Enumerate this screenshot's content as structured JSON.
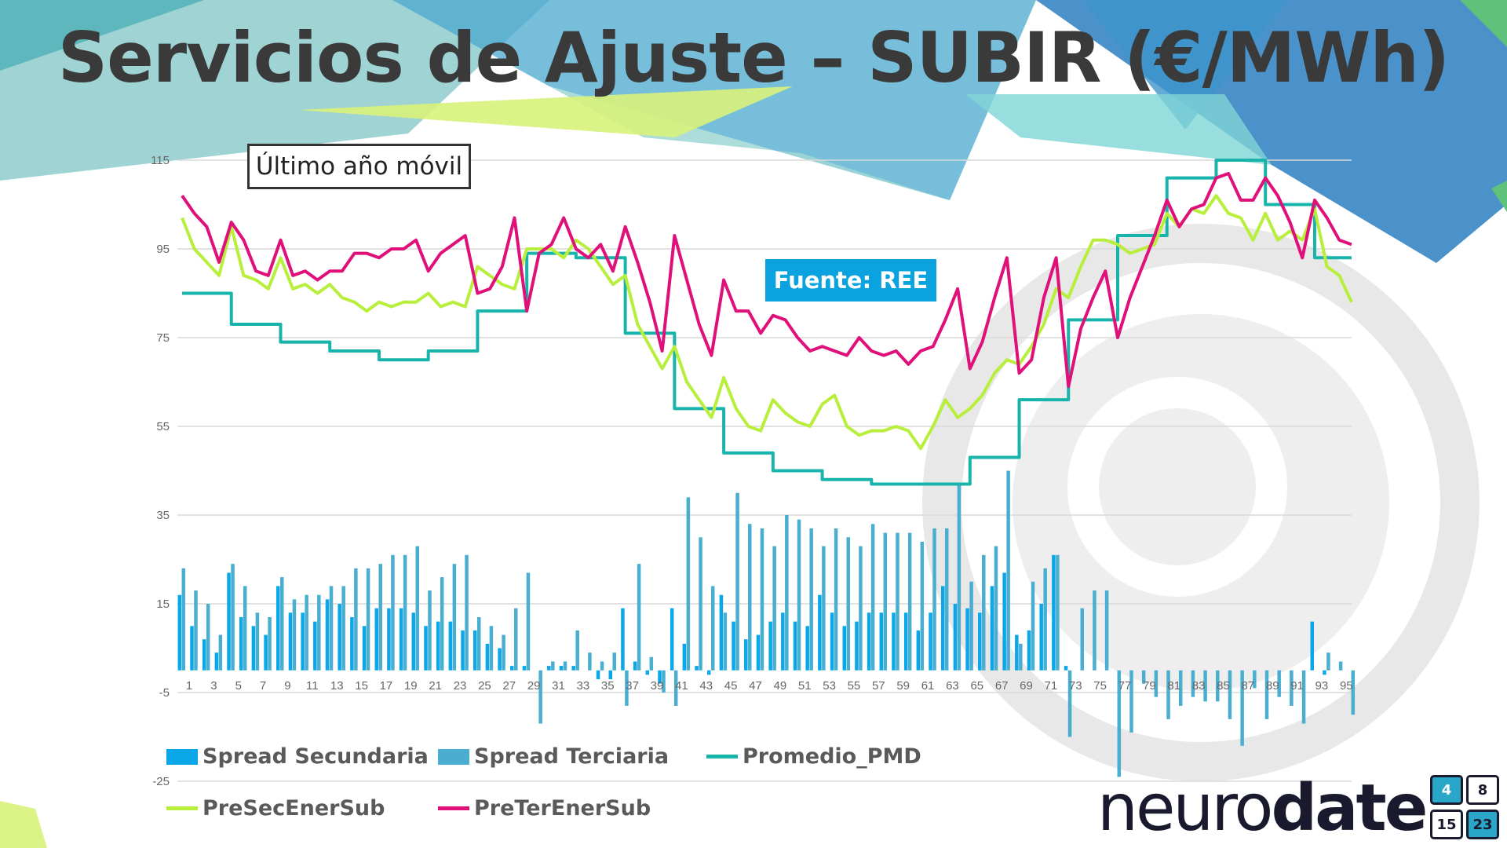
{
  "slide": {
    "title": "Servicios de Ajuste – SUBIR (€/MWh)",
    "note": "Último año móvil",
    "source": "Fuente: REE",
    "logo_light": "neuro",
    "logo_bold": "date",
    "calendar_numbers": [
      "4",
      "8",
      "15",
      "23"
    ]
  },
  "colors": {
    "spread_sec": "#0aa8e8",
    "spread_ter": "#4aaed0",
    "promedio": "#18b4ac",
    "presec": "#b8ee3c",
    "preter": "#e0107a",
    "grid": "#d9d9d9",
    "axis_text": "#666666"
  },
  "chart_data": {
    "type": "bar+line",
    "title": "Servicios de Ajuste – SUBIR (€/MWh)",
    "xlabel": "",
    "ylabel": "",
    "ylim": [
      -25,
      115
    ],
    "yticks": [
      115,
      95,
      75,
      55,
      35,
      15,
      -5,
      -25
    ],
    "x_tick_labels": [
      1,
      3,
      5,
      7,
      9,
      11,
      13,
      15,
      17,
      19,
      21,
      23,
      25,
      27,
      29,
      31,
      33,
      35,
      37,
      39,
      41,
      43,
      45,
      47,
      49,
      51,
      53,
      55,
      57,
      59,
      61,
      63,
      65,
      67,
      69,
      71,
      73,
      75,
      77,
      79,
      81,
      83,
      85,
      87,
      89,
      91,
      93,
      95
    ],
    "legend_position": "bottom",
    "grid": true,
    "x": [
      1,
      2,
      3,
      4,
      5,
      6,
      7,
      8,
      9,
      10,
      11,
      12,
      13,
      14,
      15,
      16,
      17,
      18,
      19,
      20,
      21,
      22,
      23,
      24,
      25,
      26,
      27,
      28,
      29,
      30,
      31,
      32,
      33,
      34,
      35,
      36,
      37,
      38,
      39,
      40,
      41,
      42,
      43,
      44,
      45,
      46,
      47,
      48,
      49,
      50,
      51,
      52,
      53,
      54,
      55,
      56,
      57,
      58,
      59,
      60,
      61,
      62,
      63,
      64,
      65,
      66,
      67,
      68,
      69,
      70,
      71,
      72,
      73,
      74,
      75,
      76,
      77,
      78,
      79,
      80,
      81,
      82,
      83,
      84,
      85,
      86,
      87,
      88,
      89,
      90,
      91,
      92,
      93,
      94,
      95,
      96
    ],
    "series": [
      {
        "name": "Spread Secundaria",
        "kind": "bar",
        "values": [
          17,
          10,
          7,
          4,
          22,
          12,
          10,
          8,
          19,
          13,
          13,
          11,
          16,
          15,
          12,
          10,
          14,
          14,
          14,
          13,
          10,
          11,
          11,
          9,
          9,
          6,
          5,
          1,
          1,
          0,
          1,
          1,
          1,
          0,
          -2,
          -2,
          14,
          2,
          -1,
          -3,
          14,
          6,
          1,
          -1,
          17,
          11,
          7,
          8,
          11,
          13,
          11,
          10,
          17,
          13,
          10,
          11,
          13,
          13,
          13,
          13,
          9,
          13,
          19,
          15,
          14,
          13,
          19,
          22,
          8,
          9,
          15,
          26,
          1,
          0,
          0,
          0,
          0,
          0,
          0,
          0,
          0,
          0,
          0,
          0,
          0,
          0,
          0,
          0,
          0,
          0,
          0,
          0,
          11,
          -1,
          0,
          0
        ]
      },
      {
        "name": "Spread Terciaria",
        "kind": "bar",
        "values": [
          23,
          18,
          15,
          8,
          24,
          19,
          13,
          12,
          21,
          16,
          17,
          17,
          19,
          19,
          23,
          23,
          24,
          26,
          26,
          28,
          18,
          21,
          24,
          26,
          12,
          10,
          8,
          14,
          22,
          -12,
          2,
          2,
          9,
          4,
          2,
          4,
          -8,
          24,
          3,
          -5,
          -8,
          39,
          30,
          19,
          13,
          40,
          33,
          32,
          28,
          35,
          34,
          32,
          28,
          32,
          30,
          28,
          33,
          31,
          31,
          31,
          29,
          32,
          32,
          42,
          20,
          26,
          28,
          45,
          6,
          20,
          23,
          26,
          -15,
          14,
          18,
          18,
          -24,
          -14,
          -3,
          -6,
          -11,
          -8,
          -6,
          -7,
          -7,
          -11,
          -17,
          -4,
          -11,
          -6,
          -8,
          -12,
          0,
          4,
          2,
          -10
        ]
      },
      {
        "name": "Promedio_PMD",
        "kind": "line",
        "values": [
          85,
          85,
          85,
          85,
          78,
          78,
          78,
          78,
          74,
          74,
          74,
          74,
          72,
          72,
          72,
          72,
          70,
          70,
          70,
          70,
          72,
          72,
          72,
          72,
          81,
          81,
          81,
          81,
          94,
          94,
          94,
          94,
          93,
          93,
          93,
          93,
          76,
          76,
          76,
          76,
          59,
          59,
          59,
          59,
          49,
          49,
          49,
          49,
          45,
          45,
          45,
          45,
          43,
          43,
          43,
          43,
          42,
          42,
          42,
          42,
          42,
          42,
          42,
          42,
          48,
          48,
          48,
          48,
          61,
          61,
          61,
          61,
          79,
          79,
          79,
          79,
          98,
          98,
          98,
          98,
          111,
          111,
          111,
          111,
          115,
          115,
          115,
          115,
          105,
          105,
          105,
          105,
          93,
          93,
          93,
          93
        ]
      },
      {
        "name": "PreSecEnerSub",
        "kind": "line",
        "values": [
          102,
          95,
          92,
          89,
          100,
          89,
          88,
          86,
          93,
          86,
          87,
          85,
          87,
          84,
          83,
          81,
          83,
          82,
          83,
          83,
          85,
          82,
          83,
          82,
          91,
          89,
          87,
          86,
          95,
          95,
          95,
          93,
          97,
          95,
          91,
          87,
          89,
          78,
          73,
          68,
          73,
          65,
          61,
          57,
          66,
          59,
          55,
          54,
          61,
          58,
          56,
          55,
          60,
          62,
          55,
          53,
          54,
          54,
          55,
          54,
          50,
          55,
          61,
          57,
          59,
          62,
          67,
          70,
          69,
          73,
          78,
          86,
          84,
          91,
          97,
          97,
          96,
          94,
          95,
          96,
          103,
          100,
          104,
          103,
          107,
          103,
          102,
          97,
          103,
          97,
          99,
          97,
          104,
          91,
          89,
          83
        ]
      },
      {
        "name": "PreTerEnerSub",
        "kind": "line",
        "values": [
          107,
          103,
          100,
          92,
          101,
          97,
          90,
          89,
          97,
          89,
          90,
          88,
          90,
          90,
          94,
          94,
          93,
          95,
          95,
          97,
          90,
          94,
          96,
          98,
          85,
          86,
          91,
          102,
          81,
          94,
          96,
          102,
          95,
          93,
          96,
          90,
          100,
          92,
          83,
          72,
          98,
          88,
          78,
          71,
          88,
          81,
          81,
          76,
          80,
          79,
          75,
          72,
          73,
          72,
          71,
          75,
          72,
          71,
          72,
          69,
          72,
          73,
          79,
          86,
          68,
          74,
          84,
          93,
          67,
          70,
          84,
          93,
          64,
          77,
          84,
          90,
          75,
          84,
          91,
          98,
          106,
          100,
          104,
          105,
          111,
          112,
          106,
          106,
          111,
          107,
          101,
          93,
          106,
          102,
          97,
          96
        ]
      }
    ]
  }
}
